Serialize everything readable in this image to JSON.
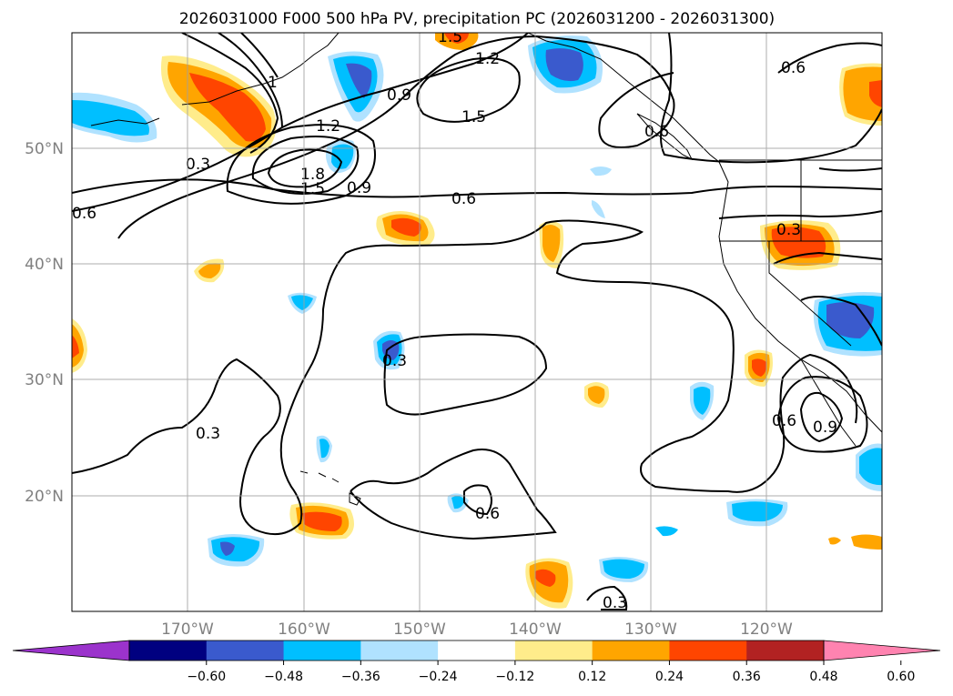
{
  "chart_data": {
    "type": "heatmap",
    "title": "2026031000 F000 500 hPa PV, precipitation PC (2026031200 - 2026031300)",
    "map": {
      "lon_range": [
        -180,
        -110
      ],
      "lat_range": [
        10,
        60
      ],
      "grid": true,
      "x_ticks": [
        "170°W",
        "160°W",
        "150°W",
        "140°W",
        "130°W",
        "120°W"
      ],
      "y_ticks": [
        "50°N",
        "40°N",
        "30°N",
        "20°N"
      ]
    },
    "colorbar": {
      "orientation": "horizontal",
      "extend": "both",
      "ticks": [
        "−0.60",
        "−0.48",
        "−0.36",
        "−0.24",
        "−0.12",
        "0.12",
        "0.24",
        "0.36",
        "0.48",
        "0.60"
      ],
      "colors": [
        "#9b33cc",
        "#000080",
        "#3a5acd",
        "#00bfff",
        "#b0e2ff",
        "#ffffff",
        "#ffec8b",
        "#ffa500",
        "#ff4500",
        "#b22222",
        "#ff83b0"
      ]
    },
    "contour_labels": [
      "1.2",
      "1.5",
      "1.8",
      "1.5",
      "0.9",
      "0.3",
      "0.6",
      "0.9",
      "1.2",
      "1.5",
      "0.6",
      "0.3",
      "0.6",
      "0.3",
      "0.3",
      "0.6",
      "0.3",
      "0.9",
      "0.6",
      "1",
      "0.6",
      "0.3",
      "0.6"
    ]
  }
}
